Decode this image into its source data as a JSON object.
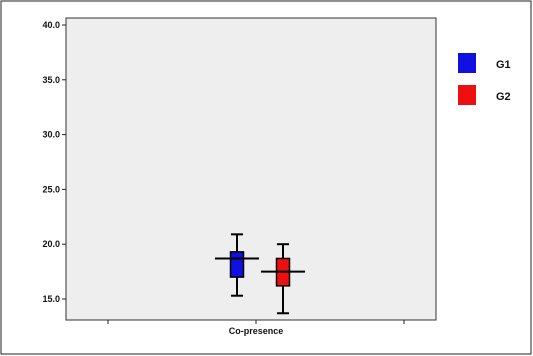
{
  "chart_data": {
    "type": "box",
    "categories": [
      "Co-presence"
    ],
    "ylim": [
      13.5,
      41
    ],
    "yticks": [
      "15.0",
      "20.0",
      "25.0",
      "30.0",
      "35.0",
      "40.0"
    ],
    "grid": false,
    "legend_position": "right",
    "series": [
      {
        "name": "G1",
        "color": "#1010e0",
        "whisker_low": 15.3,
        "q1": 17.0,
        "median": 18.7,
        "q3": 19.3,
        "whisker_high": 20.9
      },
      {
        "name": "G2",
        "color": "#ee1010",
        "whisker_low": 13.7,
        "q1": 16.2,
        "median": 17.5,
        "q3": 18.7,
        "whisker_high": 20.0
      }
    ]
  }
}
